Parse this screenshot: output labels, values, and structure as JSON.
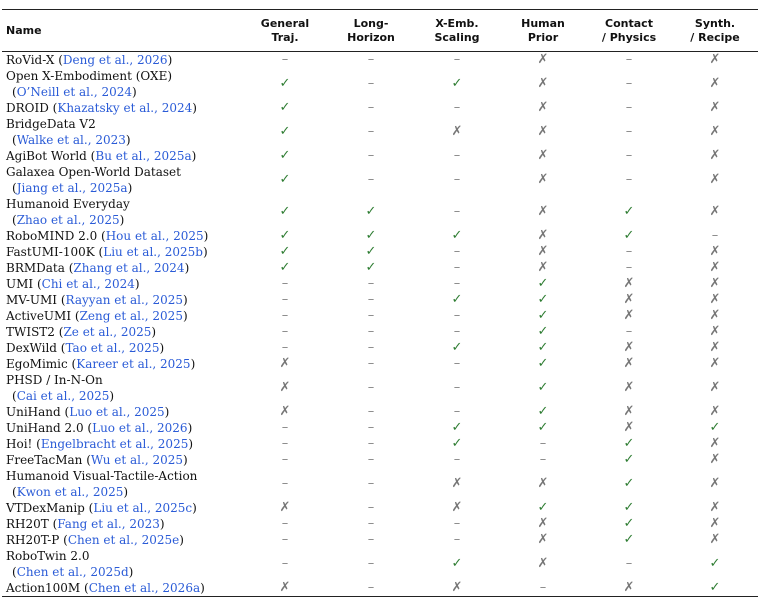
{
  "headers": {
    "name": "Name",
    "cols": [
      [
        "General",
        "Traj."
      ],
      [
        "Long-",
        "Horizon"
      ],
      [
        "X-Emb.",
        "Scaling"
      ],
      [
        "Human",
        "Prior"
      ],
      [
        "Contact",
        "/ Physics"
      ],
      [
        "Synth.",
        "/ Recipe"
      ]
    ]
  },
  "symbols": {
    "check": "✓",
    "cross": "✗",
    "dash": "–"
  },
  "rows": [
    {
      "name": "RoVid-X (",
      "cite": "Deng et al., 2026",
      "after": ")",
      "marks": [
        "d",
        "d",
        "d",
        "x",
        "d",
        "x"
      ]
    },
    {
      "name": "Open X-Embodiment (OXE)",
      "line2_pre": "(",
      "line2_cite": "O’Neill et al., 2024",
      "line2_post": ")",
      "marks": [
        "c",
        "d",
        "c",
        "x",
        "d",
        "x"
      ]
    },
    {
      "name": "DROID (",
      "cite": "Khazatsky et al., 2024",
      "after": ")",
      "marks": [
        "c",
        "d",
        "d",
        "x",
        "d",
        "x"
      ]
    },
    {
      "name": "BridgeData V2",
      "line2_pre": "(",
      "line2_cite": "Walke et al., 2023",
      "line2_post": ")",
      "marks": [
        "c",
        "d",
        "x",
        "x",
        "d",
        "x"
      ]
    },
    {
      "name": "AgiBot World (",
      "cite": "Bu et al., 2025a",
      "after": ")",
      "marks": [
        "c",
        "d",
        "d",
        "x",
        "d",
        "x"
      ]
    },
    {
      "name": "Galaxea Open-World Dataset",
      "line2_pre": "(",
      "line2_cite": "Jiang et al., 2025a",
      "line2_post": ")",
      "marks": [
        "c",
        "d",
        "d",
        "x",
        "d",
        "x"
      ]
    },
    {
      "name": "Humanoid Everyday",
      "line2_pre": "(",
      "line2_cite": "Zhao et al., 2025",
      "line2_post": ")",
      "marks": [
        "c",
        "c",
        "d",
        "x",
        "c",
        "x"
      ]
    },
    {
      "name": "RoboMIND 2.0 (",
      "cite": "Hou et al., 2025",
      "after": ")",
      "marks": [
        "c",
        "c",
        "c",
        "x",
        "c",
        "d"
      ]
    },
    {
      "name": "FastUMI-100K (",
      "cite": "Liu et al., 2025b",
      "after": ")",
      "marks": [
        "c",
        "c",
        "d",
        "x",
        "d",
        "x"
      ]
    },
    {
      "name": "BRMData (",
      "cite": "Zhang et al., 2024",
      "after": ")",
      "marks": [
        "c",
        "c",
        "d",
        "x",
        "d",
        "x"
      ]
    },
    {
      "name": "UMI (",
      "cite": "Chi et al., 2024",
      "after": ")",
      "marks": [
        "d",
        "d",
        "d",
        "c",
        "x",
        "x"
      ]
    },
    {
      "name": "MV-UMI (",
      "cite": "Rayyan et al., 2025",
      "after": ")",
      "marks": [
        "d",
        "d",
        "c",
        "c",
        "x",
        "x"
      ]
    },
    {
      "name": "ActiveUMI (",
      "cite": "Zeng et al., 2025",
      "after": ")",
      "marks": [
        "d",
        "d",
        "d",
        "c",
        "x",
        "x"
      ]
    },
    {
      "name": "TWIST2 (",
      "cite": "Ze et al., 2025",
      "after": ")",
      "marks": [
        "d",
        "d",
        "d",
        "c",
        "d",
        "x"
      ]
    },
    {
      "name": "DexWild (",
      "cite": "Tao et al., 2025",
      "after": ")",
      "marks": [
        "d",
        "d",
        "c",
        "c",
        "x",
        "x"
      ]
    },
    {
      "name": "EgoMimic (",
      "cite": "Kareer et al., 2025",
      "after": ")",
      "marks": [
        "x",
        "d",
        "d",
        "c",
        "x",
        "x"
      ]
    },
    {
      "name": "PHSD / In-N-On",
      "line2_pre": "(",
      "line2_cite": "Cai et al., 2025",
      "line2_post": ")",
      "marks": [
        "x",
        "d",
        "d",
        "c",
        "x",
        "x"
      ]
    },
    {
      "name": "UniHand (",
      "cite": "Luo et al., 2025",
      "after": ")",
      "marks": [
        "x",
        "d",
        "d",
        "c",
        "x",
        "x"
      ]
    },
    {
      "name": "UniHand 2.0 (",
      "cite": "Luo et al., 2026",
      "after": ")",
      "marks": [
        "d",
        "d",
        "c",
        "c",
        "x",
        "c"
      ]
    },
    {
      "name": "Hoi! (",
      "cite": "Engelbracht et al., 2025",
      "after": ")",
      "marks": [
        "d",
        "d",
        "c",
        "d",
        "c",
        "x"
      ]
    },
    {
      "name": "FreeTacMan (",
      "cite": "Wu et al., 2025",
      "after": ")",
      "marks": [
        "d",
        "d",
        "d",
        "d",
        "c",
        "x"
      ]
    },
    {
      "name": "Humanoid Visual-Tactile-Action",
      "line2_pre": "(",
      "line2_cite": "Kwon et al., 2025",
      "line2_post": ")",
      "marks": [
        "d",
        "d",
        "x",
        "x",
        "c",
        "x"
      ]
    },
    {
      "name": "VTDexManip (",
      "cite": "Liu et al., 2025c",
      "after": ")",
      "marks": [
        "x",
        "d",
        "x",
        "c",
        "c",
        "x"
      ]
    },
    {
      "name": "RH20T (",
      "cite": "Fang et al., 2023",
      "after": ")",
      "marks": [
        "d",
        "d",
        "d",
        "x",
        "c",
        "x"
      ]
    },
    {
      "name": "RH20T-P (",
      "cite": "Chen et al., 2025e",
      "after": ")",
      "marks": [
        "d",
        "d",
        "d",
        "x",
        "c",
        "x"
      ]
    },
    {
      "name": "RoboTwin 2.0",
      "line2_pre": "(",
      "line2_cite": "Chen et al., 2025d",
      "line2_post": ")",
      "marks": [
        "d",
        "d",
        "c",
        "x",
        "d",
        "c"
      ]
    },
    {
      "name": "Action100M (",
      "cite": "Chen et al., 2026a",
      "after": ")",
      "marks": [
        "x",
        "d",
        "x",
        "d",
        "x",
        "c"
      ]
    }
  ]
}
